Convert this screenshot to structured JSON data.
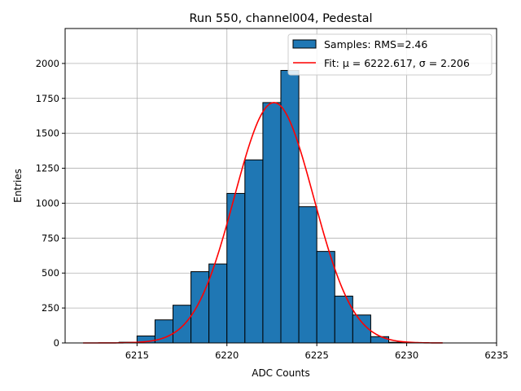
{
  "chart_data": {
    "type": "bar",
    "title": "Run 550, channel004, Pedestal",
    "xlabel": "ADC Counts",
    "ylabel": "Entries",
    "xlim": [
      6211,
      6235
    ],
    "ylim": [
      0,
      2250
    ],
    "xticks": [
      6215,
      6220,
      6225,
      6230,
      6235
    ],
    "yticks": [
      0,
      250,
      500,
      750,
      1000,
      1250,
      1500,
      1750,
      2000
    ],
    "grid": true,
    "legend_position": "top-right",
    "histogram": {
      "name": "Samples: RMS=2.46",
      "color": "#1f77b4",
      "edge_color": "#000000",
      "bins": [
        {
          "x0": 6214,
          "x1": 6215,
          "value": 5
        },
        {
          "x0": 6215,
          "x1": 6216,
          "value": 50
        },
        {
          "x0": 6216,
          "x1": 6217,
          "value": 165
        },
        {
          "x0": 6217,
          "x1": 6218,
          "value": 270
        },
        {
          "x0": 6218,
          "x1": 6219,
          "value": 510
        },
        {
          "x0": 6219,
          "x1": 6220,
          "value": 565
        },
        {
          "x0": 6220,
          "x1": 6221,
          "value": 1070
        },
        {
          "x0": 6221,
          "x1": 6222,
          "value": 1310
        },
        {
          "x0": 6222,
          "x1": 6223,
          "value": 1720
        },
        {
          "x0": 6223,
          "x1": 6224,
          "value": 1950
        },
        {
          "x0": 6224,
          "x1": 6225,
          "value": 975
        },
        {
          "x0": 6225,
          "x1": 6226,
          "value": 655
        },
        {
          "x0": 6226,
          "x1": 6227,
          "value": 335
        },
        {
          "x0": 6227,
          "x1": 6228,
          "value": 200
        },
        {
          "x0": 6228,
          "x1": 6229,
          "value": 45
        },
        {
          "x0": 6229,
          "x1": 6230,
          "value": 5
        }
      ]
    },
    "fit": {
      "name": "Fit: μ = 6222.617, σ = 2.206",
      "color": "#ff0000",
      "mu": 6222.617,
      "sigma": 2.206,
      "amplitude": 1720,
      "x_range": [
        6212,
        6232
      ]
    }
  }
}
